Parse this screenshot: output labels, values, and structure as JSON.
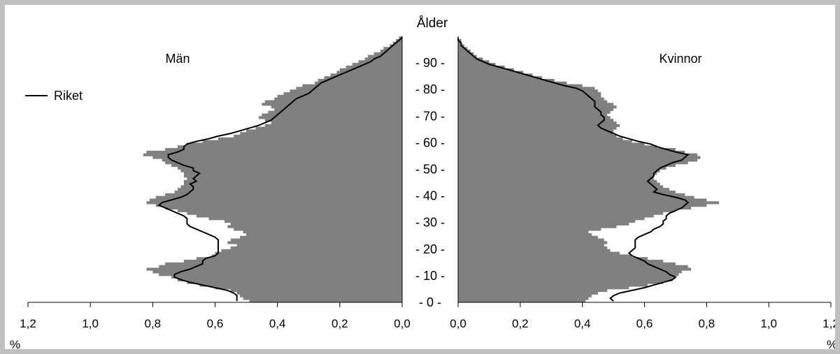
{
  "chart_data": {
    "type": "population-pyramid",
    "y_axis": {
      "label": "Ålder",
      "ticks": [
        0,
        10,
        20,
        30,
        40,
        50,
        60,
        70,
        80,
        90
      ],
      "tick_labels": [
        "- 0 -",
        "- 10 -",
        "- 20 -",
        "- 30 -",
        "- 40 -",
        "- 50 -",
        "- 60 -",
        "- 70 -",
        "- 80 -",
        "- 90 -"
      ],
      "range": [
        0,
        100
      ]
    },
    "x_axis": {
      "ticks": [
        0,
        0.2,
        0.4,
        0.6,
        0.8,
        1.0,
        1.2
      ],
      "tick_labels": [
        "0,0",
        "0,2",
        "0,4",
        "0,6",
        "0,8",
        "1,0",
        "1,2"
      ],
      "unit_label": "%",
      "range": [
        0,
        1.2
      ]
    },
    "legend": {
      "entries": [
        "Riket"
      ],
      "position": "left, upper"
    },
    "colors": {
      "bars": "#808080",
      "line": "#000000",
      "background": "#ffffff",
      "frame": "#c0c0c0"
    },
    "panels": [
      {
        "title": "Män",
        "side": "left",
        "bars": [
          0.49,
          0.51,
          0.52,
          0.53,
          0.55,
          0.6,
          0.65,
          0.69,
          0.72,
          0.74,
          0.78,
          0.8,
          0.82,
          0.78,
          0.76,
          0.7,
          0.66,
          0.61,
          0.6,
          0.58,
          0.55,
          0.53,
          0.56,
          0.55,
          0.52,
          0.5,
          0.51,
          0.54,
          0.56,
          0.55,
          0.57,
          0.62,
          0.66,
          0.69,
          0.72,
          0.76,
          0.79,
          0.82,
          0.81,
          0.79,
          0.76,
          0.73,
          0.72,
          0.71,
          0.7,
          0.7,
          0.69,
          0.7,
          0.7,
          0.71,
          0.72,
          0.74,
          0.76,
          0.77,
          0.8,
          0.83,
          0.82,
          0.76,
          0.72,
          0.69,
          0.64,
          0.59,
          0.54,
          0.52,
          0.5,
          0.47,
          0.44,
          0.42,
          0.44,
          0.46,
          0.45,
          0.43,
          0.41,
          0.42,
          0.45,
          0.44,
          0.41,
          0.4,
          0.38,
          0.36,
          0.34,
          0.32,
          0.28,
          0.27,
          0.25,
          0.23,
          0.21,
          0.2,
          0.18,
          0.16,
          0.14,
          0.12,
          0.11,
          0.09,
          0.07,
          0.06,
          0.04,
          0.03,
          0.02,
          0.01
        ],
        "line": [
          0.53,
          0.53,
          0.53,
          0.54,
          0.56,
          0.6,
          0.64,
          0.68,
          0.71,
          0.73,
          0.73,
          0.71,
          0.68,
          0.66,
          0.64,
          0.64,
          0.63,
          0.6,
          0.59,
          0.59,
          0.59,
          0.59,
          0.59,
          0.59,
          0.6,
          0.62,
          0.64,
          0.66,
          0.68,
          0.69,
          0.69,
          0.69,
          0.7,
          0.72,
          0.74,
          0.76,
          0.78,
          0.77,
          0.74,
          0.71,
          0.69,
          0.68,
          0.67,
          0.67,
          0.68,
          0.66,
          0.67,
          0.66,
          0.65,
          0.67,
          0.67,
          0.7,
          0.72,
          0.74,
          0.75,
          0.75,
          0.72,
          0.7,
          0.7,
          0.69,
          0.66,
          0.62,
          0.59,
          0.55,
          0.52,
          0.49,
          0.46,
          0.44,
          0.42,
          0.41,
          0.4,
          0.39,
          0.38,
          0.37,
          0.36,
          0.35,
          0.34,
          0.32,
          0.3,
          0.29,
          0.28,
          0.27,
          0.26,
          0.24,
          0.22,
          0.2,
          0.18,
          0.16,
          0.14,
          0.12,
          0.1,
          0.09,
          0.07,
          0.06,
          0.05,
          0.04,
          0.03,
          0.02,
          0.01,
          0.0
        ]
      },
      {
        "title": "Kvinnor",
        "side": "right",
        "bars": [
          0.41,
          0.42,
          0.43,
          0.45,
          0.48,
          0.55,
          0.61,
          0.66,
          0.69,
          0.7,
          0.71,
          0.72,
          0.75,
          0.74,
          0.7,
          0.66,
          0.61,
          0.56,
          0.52,
          0.49,
          0.48,
          0.47,
          0.48,
          0.47,
          0.45,
          0.43,
          0.42,
          0.46,
          0.51,
          0.55,
          0.57,
          0.6,
          0.63,
          0.66,
          0.7,
          0.75,
          0.8,
          0.84,
          0.8,
          0.76,
          0.73,
          0.7,
          0.68,
          0.66,
          0.65,
          0.64,
          0.63,
          0.63,
          0.64,
          0.65,
          0.67,
          0.7,
          0.74,
          0.77,
          0.78,
          0.77,
          0.73,
          0.7,
          0.64,
          0.6,
          0.56,
          0.53,
          0.51,
          0.5,
          0.5,
          0.51,
          0.52,
          0.51,
          0.5,
          0.49,
          0.48,
          0.49,
          0.5,
          0.51,
          0.5,
          0.48,
          0.47,
          0.46,
          0.46,
          0.45,
          0.44,
          0.4,
          0.35,
          0.31,
          0.27,
          0.24,
          0.21,
          0.18,
          0.15,
          0.12,
          0.1,
          0.08,
          0.06,
          0.05,
          0.04,
          0.03,
          0.02,
          0.01,
          0.01,
          0.0
        ],
        "line": [
          0.5,
          0.49,
          0.5,
          0.52,
          0.56,
          0.6,
          0.63,
          0.66,
          0.69,
          0.7,
          0.68,
          0.67,
          0.65,
          0.63,
          0.61,
          0.6,
          0.58,
          0.56,
          0.55,
          0.56,
          0.57,
          0.57,
          0.57,
          0.57,
          0.58,
          0.6,
          0.62,
          0.63,
          0.65,
          0.66,
          0.66,
          0.67,
          0.67,
          0.68,
          0.7,
          0.72,
          0.73,
          0.74,
          0.73,
          0.7,
          0.66,
          0.63,
          0.64,
          0.63,
          0.62,
          0.61,
          0.62,
          0.63,
          0.63,
          0.64,
          0.65,
          0.67,
          0.69,
          0.72,
          0.73,
          0.74,
          0.7,
          0.67,
          0.64,
          0.62,
          0.58,
          0.55,
          0.52,
          0.5,
          0.48,
          0.46,
          0.45,
          0.46,
          0.47,
          0.47,
          0.46,
          0.46,
          0.45,
          0.44,
          0.44,
          0.44,
          0.43,
          0.42,
          0.41,
          0.4,
          0.38,
          0.34,
          0.31,
          0.28,
          0.25,
          0.22,
          0.19,
          0.16,
          0.13,
          0.1,
          0.08,
          0.06,
          0.05,
          0.04,
          0.03,
          0.02,
          0.01,
          0.01,
          0.0,
          0.0
        ]
      }
    ]
  }
}
